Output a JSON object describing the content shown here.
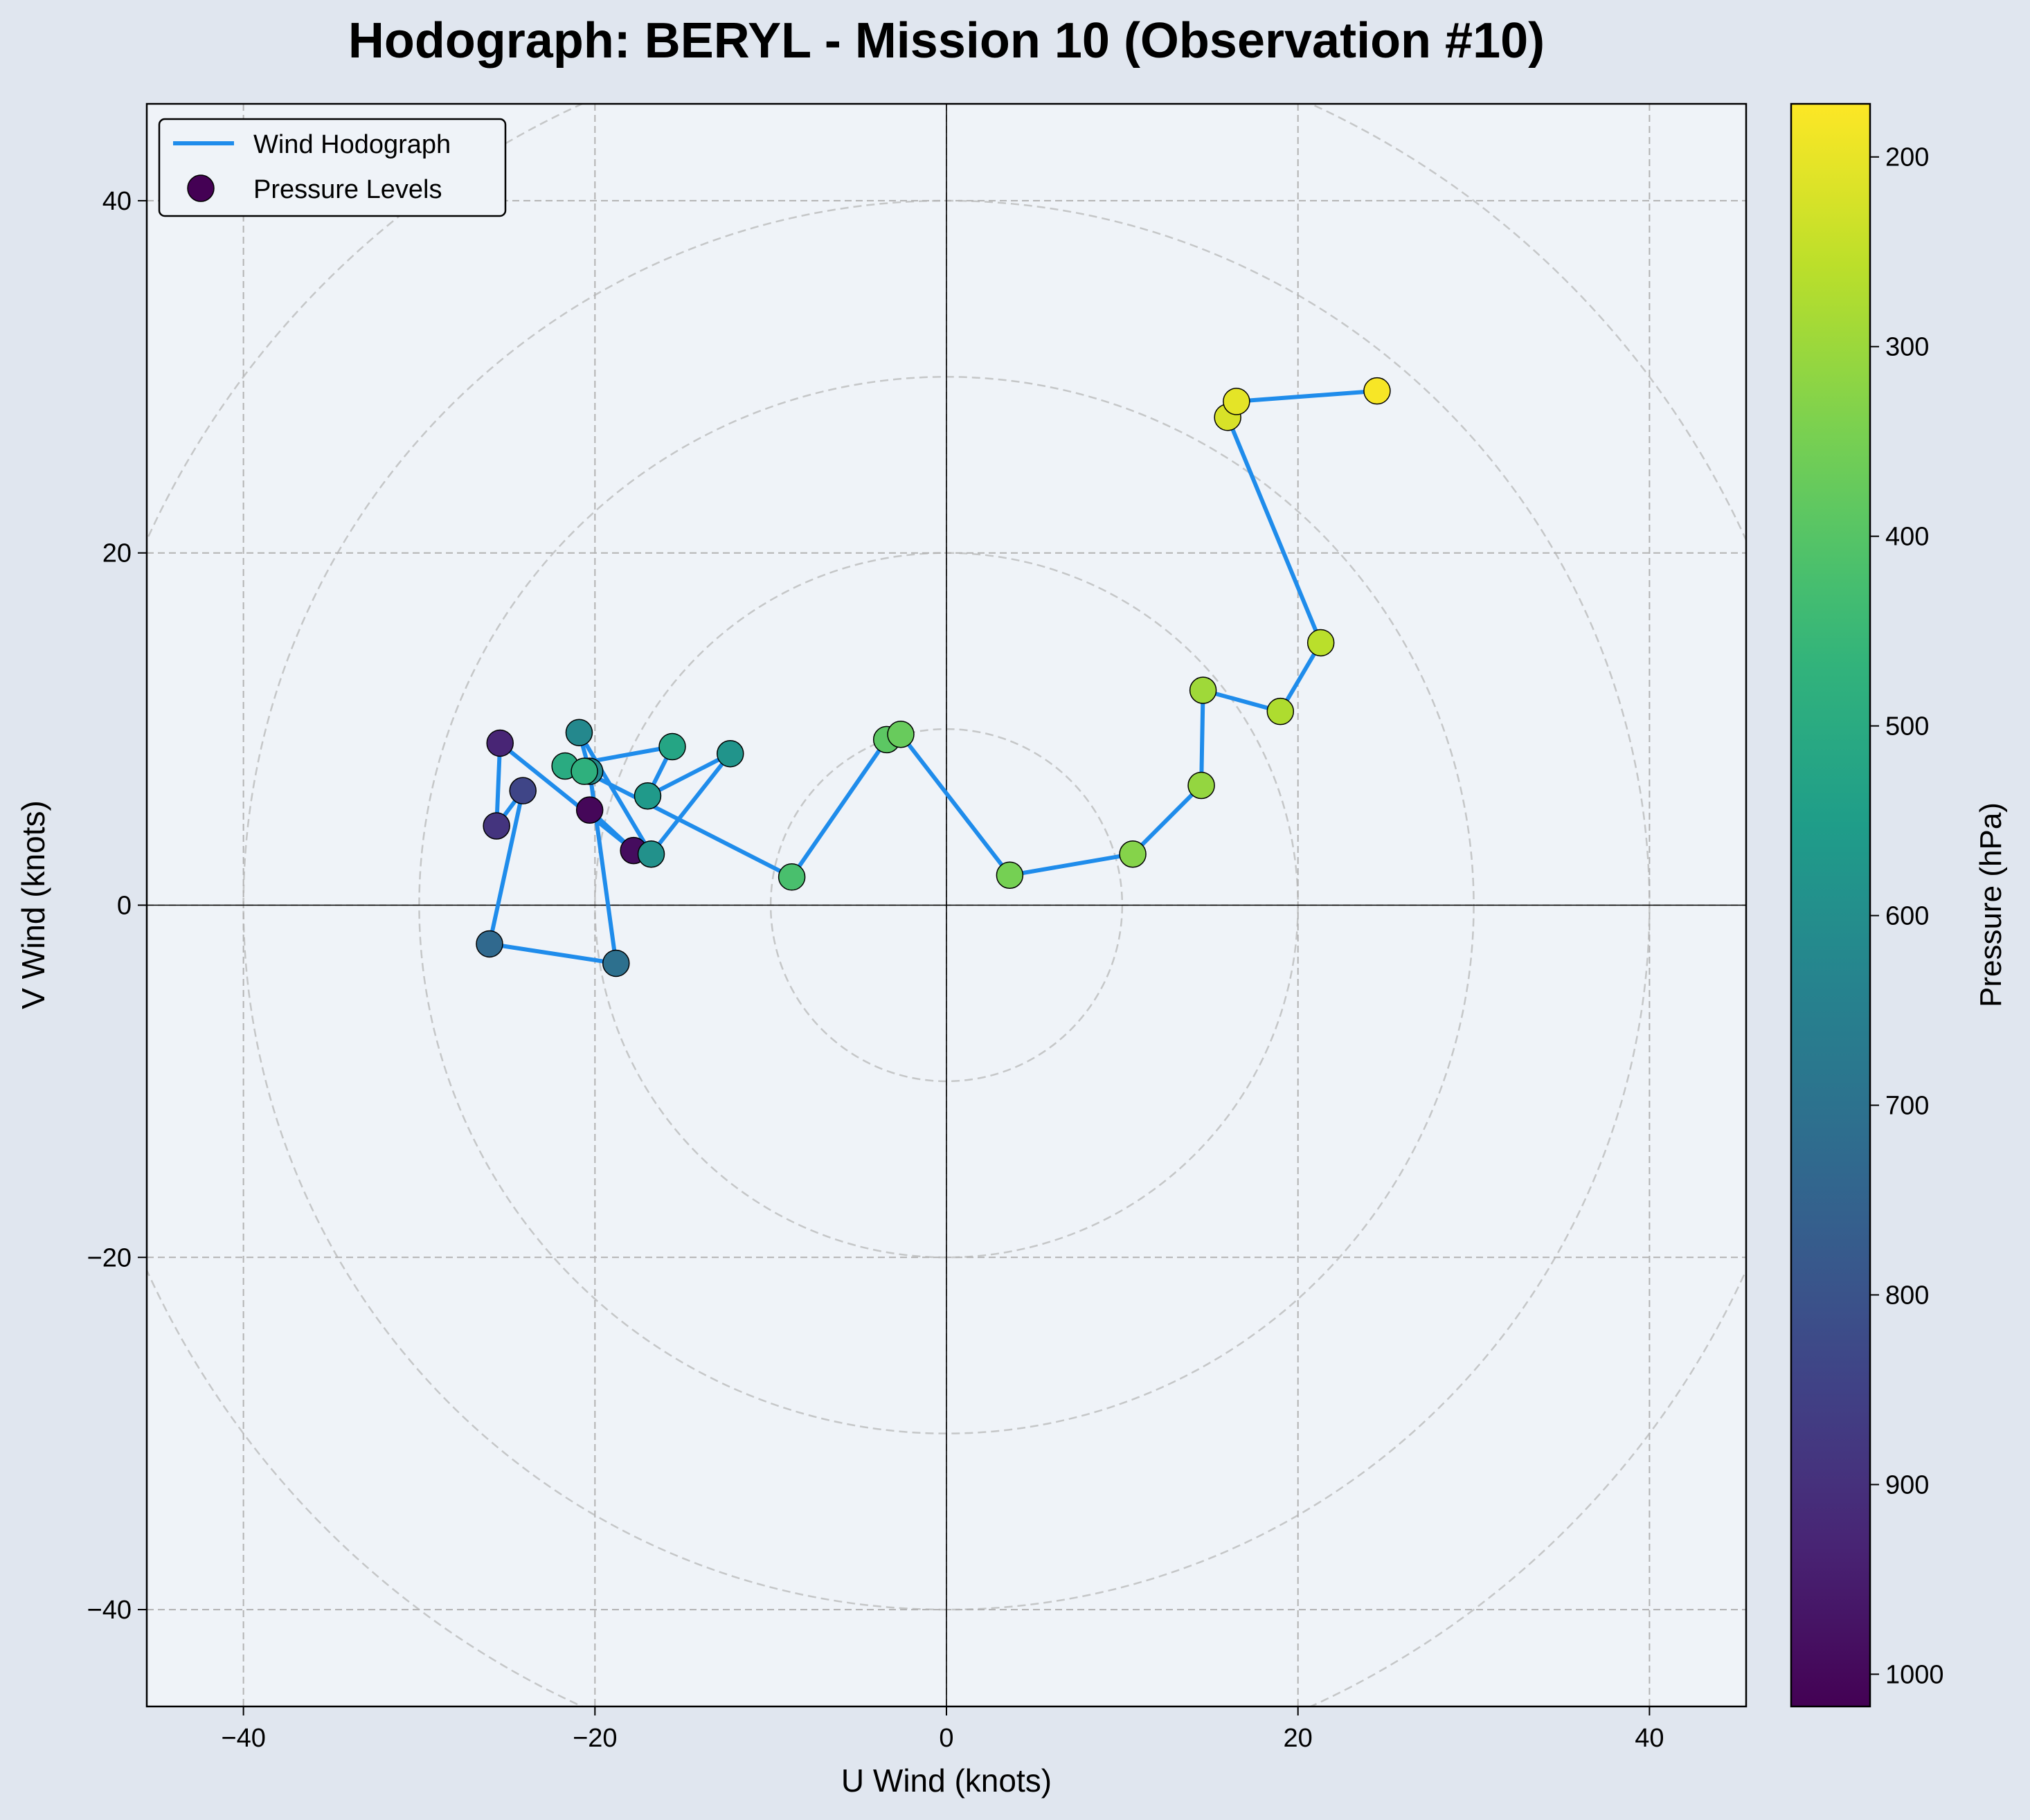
{
  "chart_data": {
    "type": "scatter",
    "title": "Hodograph: BERYL - Mission 10 (Observation #10)",
    "xlabel": "U Wind (knots)",
    "ylabel": "V Wind (knots)",
    "xlim": [
      -45.5,
      45.5
    ],
    "ylim": [
      -45.5,
      45.5
    ],
    "xticks": [
      -40,
      -20,
      0,
      20,
      40
    ],
    "yticks": [
      -40,
      -20,
      0,
      20,
      40
    ],
    "grid": true,
    "range_rings": [
      10,
      20,
      30,
      40,
      50
    ],
    "legend": {
      "placement": "top-left",
      "entries": [
        "Wind Hodograph",
        "Pressure Levels"
      ]
    },
    "colorbar": {
      "label": "Pressure (hPa)",
      "range": [
        1017,
        172
      ],
      "ticks": [
        200,
        300,
        400,
        500,
        600,
        700,
        800,
        900,
        1000
      ],
      "colormap": "viridis"
    },
    "line_color": "#1f8ceb",
    "points": [
      {
        "u": -20.3,
        "v": 5.4,
        "p": 1003
      },
      {
        "u": -17.8,
        "v": 3.1,
        "p": 990
      },
      {
        "u": -25.4,
        "v": 9.2,
        "p": 930
      },
      {
        "u": -25.6,
        "v": 4.5,
        "p": 890
      },
      {
        "u": -24.1,
        "v": 6.5,
        "p": 840
      },
      {
        "u": -26.0,
        "v": -2.2,
        "p": 730
      },
      {
        "u": -18.8,
        "v": -3.3,
        "p": 705
      },
      {
        "u": -20.3,
        "v": 7.6,
        "p": 610
      },
      {
        "u": -20.9,
        "v": 9.8,
        "p": 620
      },
      {
        "u": -16.8,
        "v": 2.9,
        "p": 590
      },
      {
        "u": -12.3,
        "v": 8.6,
        "p": 580
      },
      {
        "u": -17.0,
        "v": 6.2,
        "p": 560
      },
      {
        "u": -15.6,
        "v": 9.0,
        "p": 520
      },
      {
        "u": -21.7,
        "v": 7.9,
        "p": 500
      },
      {
        "u": -20.6,
        "v": 7.6,
        "p": 480
      },
      {
        "u": -8.8,
        "v": 1.6,
        "p": 420
      },
      {
        "u": -3.4,
        "v": 9.4,
        "p": 390
      },
      {
        "u": -2.6,
        "v": 9.7,
        "p": 370
      },
      {
        "u": 3.6,
        "v": 1.7,
        "p": 350
      },
      {
        "u": 10.6,
        "v": 2.9,
        "p": 330
      },
      {
        "u": 14.5,
        "v": 6.8,
        "p": 310
      },
      {
        "u": 14.6,
        "v": 12.2,
        "p": 295
      },
      {
        "u": 19.0,
        "v": 11.0,
        "p": 275
      },
      {
        "u": 21.3,
        "v": 14.9,
        "p": 260
      },
      {
        "u": 16.0,
        "v": 27.7,
        "p": 220
      },
      {
        "u": 16.5,
        "v": 28.6,
        "p": 205
      },
      {
        "u": 24.5,
        "v": 29.2,
        "p": 180
      }
    ]
  }
}
